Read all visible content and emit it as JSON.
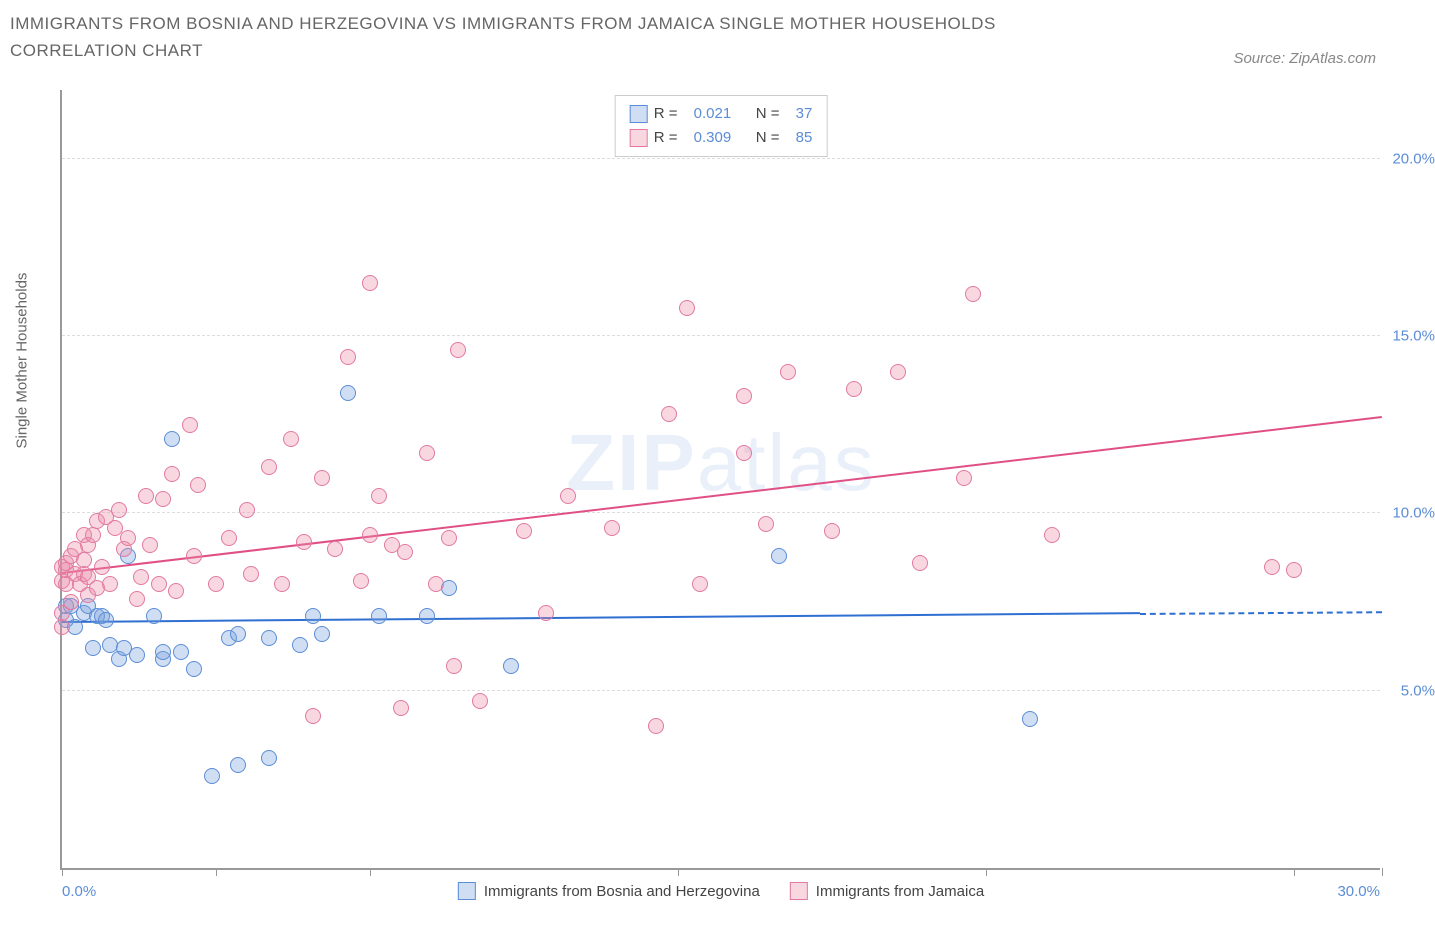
{
  "title": "IMMIGRANTS FROM BOSNIA AND HERZEGOVINA VS IMMIGRANTS FROM JAMAICA SINGLE MOTHER HOUSEHOLDS CORRELATION CHART",
  "source": "Source: ZipAtlas.com",
  "watermark_bold": "ZIP",
  "watermark_light": "atlas",
  "y_axis_label": "Single Mother Households",
  "x_axis": {
    "min": 0.0,
    "max": 30.0,
    "label_left": "0.0%",
    "label_right": "30.0%",
    "tick_positions": [
      0,
      3.5,
      7,
      14,
      21,
      28,
      30
    ]
  },
  "y_axis_right": {
    "min": 0.0,
    "max": 22.0,
    "ticks": [
      5.0,
      10.0,
      15.0,
      20.0
    ],
    "tick_labels": [
      "5.0%",
      "10.0%",
      "15.0%",
      "20.0%"
    ]
  },
  "series": [
    {
      "key": "bosnia",
      "label": "Immigrants from Bosnia and Herzegovina",
      "color_fill": "rgba(120,160,220,0.35)",
      "color_stroke": "#5b8dd6",
      "line_color": "#2e6fd1",
      "marker_radius": 8,
      "R": "0.021",
      "N": "37",
      "trend": {
        "x1": 0,
        "y1": 6.9,
        "x2_solid": 24.5,
        "y2_solid": 7.15,
        "x2_dash": 30,
        "y2_dash": 7.2
      },
      "points": [
        [
          0.1,
          7.4
        ],
        [
          0.1,
          7.0
        ],
        [
          0.2,
          7.4
        ],
        [
          0.3,
          6.8
        ],
        [
          0.5,
          7.2
        ],
        [
          0.6,
          7.4
        ],
        [
          0.7,
          6.2
        ],
        [
          0.8,
          7.1
        ],
        [
          0.9,
          7.1
        ],
        [
          1.0,
          7.0
        ],
        [
          1.1,
          6.3
        ],
        [
          1.3,
          5.9
        ],
        [
          1.4,
          6.2
        ],
        [
          1.5,
          8.8
        ],
        [
          1.7,
          6.0
        ],
        [
          2.1,
          7.1
        ],
        [
          2.3,
          5.9
        ],
        [
          2.3,
          6.1
        ],
        [
          2.5,
          12.1
        ],
        [
          2.7,
          6.1
        ],
        [
          3.0,
          5.6
        ],
        [
          3.4,
          2.6
        ],
        [
          3.8,
          6.5
        ],
        [
          4.0,
          2.9
        ],
        [
          4.0,
          6.6
        ],
        [
          4.7,
          6.5
        ],
        [
          4.7,
          3.1
        ],
        [
          5.4,
          6.3
        ],
        [
          5.7,
          7.1
        ],
        [
          5.9,
          6.6
        ],
        [
          6.5,
          13.4
        ],
        [
          7.2,
          7.1
        ],
        [
          8.3,
          7.1
        ],
        [
          8.8,
          7.9
        ],
        [
          10.2,
          5.7
        ],
        [
          16.3,
          8.8
        ],
        [
          22.0,
          4.2
        ]
      ]
    },
    {
      "key": "jamaica",
      "label": "Immigrants from Jamaica",
      "color_fill": "rgba(235,140,170,0.35)",
      "color_stroke": "#e27aa0",
      "line_color": "#e05085",
      "marker_radius": 8,
      "R": "0.309",
      "N": "85",
      "trend": {
        "x1": 0,
        "y1": 8.3,
        "x2_solid": 30,
        "y2_solid": 12.7,
        "x2_dash": 30,
        "y2_dash": 12.7
      },
      "points": [
        [
          0.0,
          6.8
        ],
        [
          0.0,
          7.2
        ],
        [
          0.0,
          8.1
        ],
        [
          0.0,
          8.5
        ],
        [
          0.1,
          8.0
        ],
        [
          0.1,
          8.4
        ],
        [
          0.1,
          8.6
        ],
        [
          0.2,
          7.5
        ],
        [
          0.2,
          8.8
        ],
        [
          0.3,
          8.3
        ],
        [
          0.3,
          9.0
        ],
        [
          0.4,
          8.0
        ],
        [
          0.5,
          8.3
        ],
        [
          0.5,
          8.7
        ],
        [
          0.5,
          9.4
        ],
        [
          0.6,
          7.7
        ],
        [
          0.6,
          8.2
        ],
        [
          0.6,
          9.1
        ],
        [
          0.7,
          9.4
        ],
        [
          0.8,
          7.9
        ],
        [
          0.8,
          9.8
        ],
        [
          0.9,
          8.5
        ],
        [
          1.0,
          9.9
        ],
        [
          1.1,
          8.0
        ],
        [
          1.2,
          9.6
        ],
        [
          1.3,
          10.1
        ],
        [
          1.4,
          9.0
        ],
        [
          1.5,
          9.3
        ],
        [
          1.7,
          7.6
        ],
        [
          1.8,
          8.2
        ],
        [
          1.9,
          10.5
        ],
        [
          2.0,
          9.1
        ],
        [
          2.2,
          8.0
        ],
        [
          2.3,
          10.4
        ],
        [
          2.5,
          11.1
        ],
        [
          2.6,
          7.8
        ],
        [
          2.9,
          12.5
        ],
        [
          3.0,
          8.8
        ],
        [
          3.1,
          10.8
        ],
        [
          3.5,
          8.0
        ],
        [
          3.8,
          9.3
        ],
        [
          4.2,
          10.1
        ],
        [
          4.3,
          8.3
        ],
        [
          4.7,
          11.3
        ],
        [
          5.0,
          8.0
        ],
        [
          5.2,
          12.1
        ],
        [
          5.5,
          9.2
        ],
        [
          5.7,
          4.3
        ],
        [
          5.9,
          11.0
        ],
        [
          6.2,
          9.0
        ],
        [
          6.5,
          14.4
        ],
        [
          6.8,
          8.1
        ],
        [
          7.0,
          9.4
        ],
        [
          7.0,
          16.5
        ],
        [
          7.2,
          10.5
        ],
        [
          7.5,
          9.1
        ],
        [
          7.7,
          4.5
        ],
        [
          7.8,
          8.9
        ],
        [
          8.3,
          11.7
        ],
        [
          8.5,
          8.0
        ],
        [
          8.8,
          9.3
        ],
        [
          8.9,
          5.7
        ],
        [
          9.0,
          14.6
        ],
        [
          9.5,
          4.7
        ],
        [
          10.5,
          9.5
        ],
        [
          11.0,
          7.2
        ],
        [
          11.5,
          10.5
        ],
        [
          12.5,
          9.6
        ],
        [
          13.5,
          4.0
        ],
        [
          13.8,
          12.8
        ],
        [
          14.2,
          15.8
        ],
        [
          14.5,
          8.0
        ],
        [
          15.5,
          11.7
        ],
        [
          15.5,
          13.3
        ],
        [
          16.0,
          9.7
        ],
        [
          16.5,
          14.0
        ],
        [
          17.5,
          9.5
        ],
        [
          18.0,
          13.5
        ],
        [
          19.0,
          14.0
        ],
        [
          19.5,
          8.6
        ],
        [
          20.5,
          11.0
        ],
        [
          20.7,
          16.2
        ],
        [
          22.5,
          9.4
        ],
        [
          27.5,
          8.5
        ],
        [
          28.0,
          8.4
        ]
      ]
    }
  ],
  "legend_top": {
    "rows": [
      {
        "swatch_fill": "rgba(120,160,220,0.35)",
        "swatch_stroke": "#5b8dd6",
        "R_lbl": "R =",
        "R_val": "0.021",
        "N_lbl": "N =",
        "N_val": "37"
      },
      {
        "swatch_fill": "rgba(235,140,170,0.35)",
        "swatch_stroke": "#e27aa0",
        "R_lbl": "R =",
        "R_val": "0.309",
        "N_lbl": "N =",
        "N_val": "85"
      }
    ]
  },
  "colors": {
    "background": "#ffffff",
    "grid": "#dddddd",
    "axis": "#999999",
    "text": "#666666",
    "value": "#5b8dd6"
  }
}
